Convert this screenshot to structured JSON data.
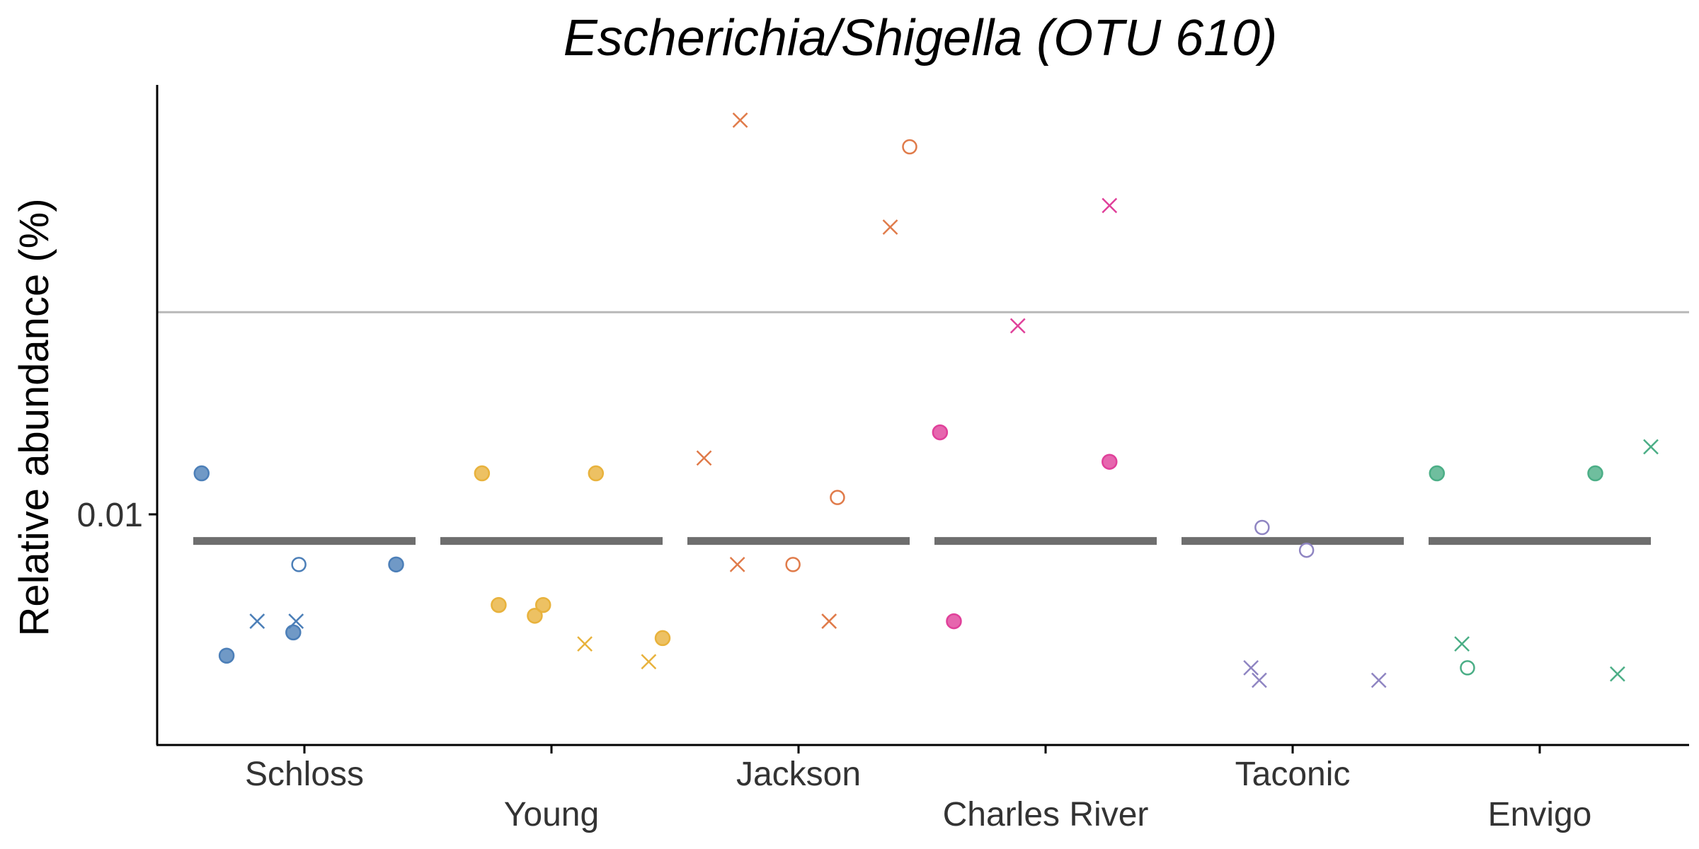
{
  "chart_data": {
    "type": "scatter",
    "title": "Escherichia/Shigella (OTU 610)",
    "xlabel": "",
    "ylabel": "Relative abundance (%)",
    "yscale": "log",
    "yticks": [
      "0.01"
    ],
    "categories": [
      "Schloss",
      "Young",
      "Jackson",
      "Charles River",
      "Taconic",
      "Envigo"
    ],
    "colors": {
      "Schloss": "#4C7FB8",
      "Young": "#E8B23C",
      "Jackson": "#E07B4A",
      "Charles River": "#E0409A",
      "Taconic": "#8F85C2",
      "Envigo": "#4BAE86"
    },
    "reference_line": 0.016,
    "medians": [
      0.0094,
      0.0094,
      0.0094,
      0.0094,
      0.0094,
      0.0094
    ],
    "points": [
      {
        "group": "Schloss",
        "jitter": -0.37,
        "y": 0.011,
        "shape": "filled-circle"
      },
      {
        "group": "Schloss",
        "jitter": -0.28,
        "y": 0.0072,
        "shape": "filled-circle"
      },
      {
        "group": "Schloss",
        "jitter": -0.17,
        "y": 0.0078,
        "shape": "cross"
      },
      {
        "group": "Schloss",
        "jitter": -0.04,
        "y": 0.0076,
        "shape": "filled-circle"
      },
      {
        "group": "Schloss",
        "jitter": -0.03,
        "y": 0.0078,
        "shape": "cross"
      },
      {
        "group": "Schloss",
        "jitter": -0.02,
        "y": 0.0089,
        "shape": "open-circle"
      },
      {
        "group": "Schloss",
        "jitter": 0.33,
        "y": 0.0089,
        "shape": "filled-circle"
      },
      {
        "group": "Young",
        "jitter": -0.25,
        "y": 0.011,
        "shape": "filled-circle"
      },
      {
        "group": "Young",
        "jitter": -0.19,
        "y": 0.0081,
        "shape": "filled-circle"
      },
      {
        "group": "Young",
        "jitter": -0.06,
        "y": 0.0079,
        "shape": "filled-circle"
      },
      {
        "group": "Young",
        "jitter": -0.03,
        "y": 0.0081,
        "shape": "filled-circle"
      },
      {
        "group": "Young",
        "jitter": 0.12,
        "y": 0.0074,
        "shape": "cross"
      },
      {
        "group": "Young",
        "jitter": 0.16,
        "y": 0.011,
        "shape": "filled-circle"
      },
      {
        "group": "Young",
        "jitter": 0.35,
        "y": 0.0071,
        "shape": "cross"
      },
      {
        "group": "Young",
        "jitter": 0.4,
        "y": 0.0075,
        "shape": "filled-circle"
      },
      {
        "group": "Jackson",
        "jitter": -0.34,
        "y": 0.0114,
        "shape": "cross"
      },
      {
        "group": "Jackson",
        "jitter": -0.22,
        "y": 0.0089,
        "shape": "cross"
      },
      {
        "group": "Jackson",
        "jitter": -0.21,
        "y": 0.025,
        "shape": "cross"
      },
      {
        "group": "Jackson",
        "jitter": -0.02,
        "y": 0.0089,
        "shape": "open-circle"
      },
      {
        "group": "Jackson",
        "jitter": 0.14,
        "y": 0.0104,
        "shape": "open-circle"
      },
      {
        "group": "Jackson",
        "jitter": 0.11,
        "y": 0.0078,
        "shape": "cross"
      },
      {
        "group": "Jackson",
        "jitter": 0.33,
        "y": 0.0195,
        "shape": "cross"
      },
      {
        "group": "Jackson",
        "jitter": 0.4,
        "y": 0.0235,
        "shape": "open-circle"
      },
      {
        "group": "Charles River",
        "jitter": -0.38,
        "y": 0.0121,
        "shape": "filled-circle"
      },
      {
        "group": "Charles River",
        "jitter": -0.33,
        "y": 0.0078,
        "shape": "filled-circle"
      },
      {
        "group": "Charles River",
        "jitter": -0.1,
        "y": 0.0155,
        "shape": "cross"
      },
      {
        "group": "Charles River",
        "jitter": 0.23,
        "y": 0.0205,
        "shape": "cross"
      },
      {
        "group": "Charles River",
        "jitter": 0.23,
        "y": 0.0113,
        "shape": "filled-circle"
      },
      {
        "group": "Taconic",
        "jitter": -0.15,
        "y": 0.007,
        "shape": "cross"
      },
      {
        "group": "Taconic",
        "jitter": -0.12,
        "y": 0.0068,
        "shape": "cross"
      },
      {
        "group": "Taconic",
        "jitter": -0.11,
        "y": 0.0097,
        "shape": "open-circle"
      },
      {
        "group": "Taconic",
        "jitter": 0.05,
        "y": 0.0092,
        "shape": "open-circle"
      },
      {
        "group": "Taconic",
        "jitter": 0.31,
        "y": 0.0068,
        "shape": "cross"
      },
      {
        "group": "Envigo",
        "jitter": -0.37,
        "y": 0.011,
        "shape": "filled-circle"
      },
      {
        "group": "Envigo",
        "jitter": -0.28,
        "y": 0.0074,
        "shape": "cross"
      },
      {
        "group": "Envigo",
        "jitter": -0.26,
        "y": 0.007,
        "shape": "open-circle"
      },
      {
        "group": "Envigo",
        "jitter": 0.2,
        "y": 0.011,
        "shape": "filled-circle"
      },
      {
        "group": "Envigo",
        "jitter": 0.28,
        "y": 0.0069,
        "shape": "cross"
      },
      {
        "group": "Envigo",
        "jitter": 0.4,
        "y": 0.0117,
        "shape": "cross"
      }
    ]
  }
}
